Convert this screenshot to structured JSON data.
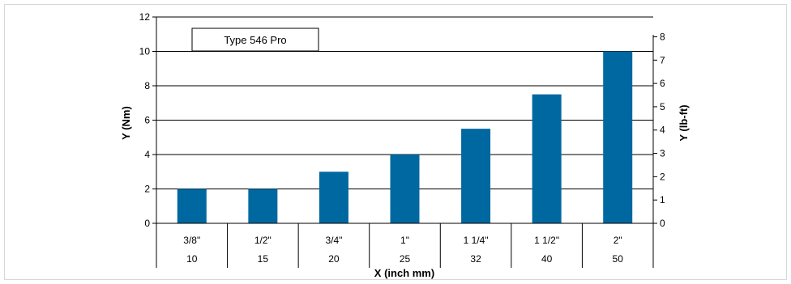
{
  "chart_data": {
    "type": "bar",
    "legend_text": "Type 546 Pro",
    "categories_inch": [
      "3/8\"",
      "1/2\"",
      "3/4\"",
      "1\"",
      "1 1/4\"",
      "1 1/2\"",
      "2\""
    ],
    "categories_mm": [
      "10",
      "15",
      "20",
      "25",
      "32",
      "40",
      "50"
    ],
    "values": [
      2,
      2,
      3,
      4,
      5.5,
      7.5,
      10
    ],
    "xlabel": "X (inch mm)",
    "ylabel": "Y (Nm)",
    "y2label": "Y (lb-ft)",
    "ylim": [
      0,
      12
    ],
    "y2lim": [
      0,
      8.85
    ],
    "yticks": [
      0,
      2,
      4,
      6,
      8,
      10,
      12
    ],
    "y2ticks": [
      0,
      1,
      2,
      3,
      4,
      5,
      6,
      7,
      8
    ],
    "bar_color": "#0068a0",
    "grid": "horizontal"
  }
}
